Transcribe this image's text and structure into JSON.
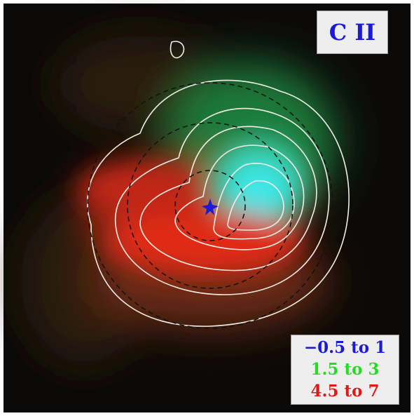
{
  "label": {
    "text": "C II",
    "color": "#1a1ad8"
  },
  "legend": {
    "items": [
      {
        "text": "−0.5 to 1",
        "color": "#1a1ad8"
      },
      {
        "text": "1.5 to 3",
        "color": "#22dd22"
      },
      {
        "text": "4.5 to 7",
        "color": "#e01818"
      }
    ]
  }
}
